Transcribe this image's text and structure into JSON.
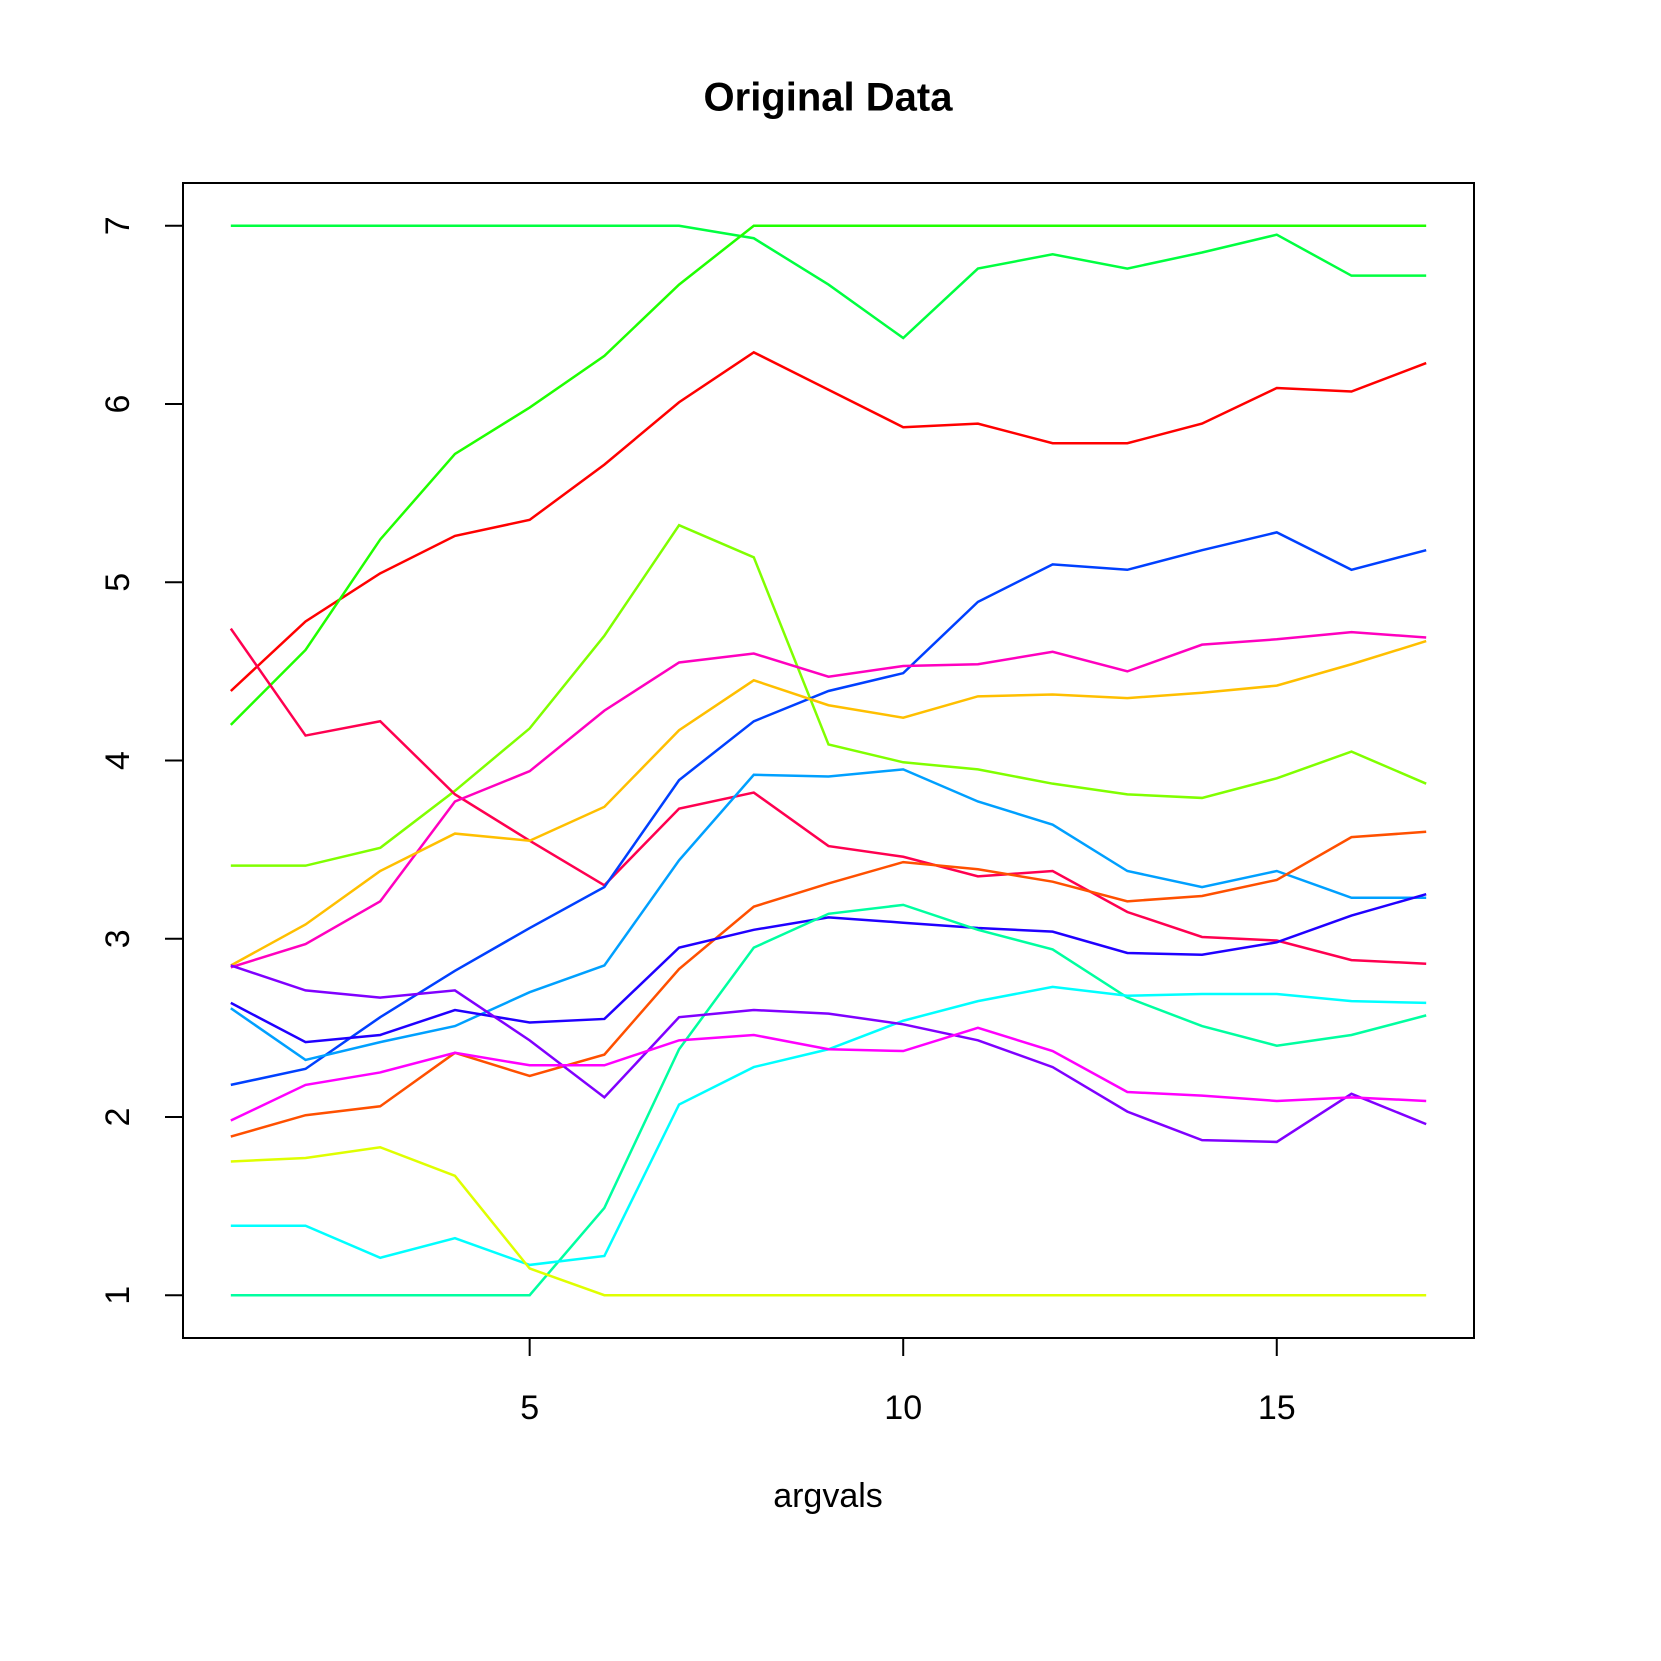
{
  "chart_data": {
    "type": "line",
    "title": "Original Data",
    "x_label": "argvals",
    "x": [
      1,
      2,
      3,
      4,
      5,
      6,
      7,
      8,
      9,
      10,
      11,
      12,
      13,
      14,
      15,
      16,
      17
    ],
    "xlim": [
      0.36,
      17.64
    ],
    "xticks": [
      5,
      10,
      15
    ],
    "ylim": [
      0.76,
      7.24
    ],
    "yticks": [
      1,
      2,
      3,
      4,
      5,
      6,
      7
    ],
    "series": [
      {
        "color": "#ff0000",
        "values": [
          4.39,
          4.78,
          5.05,
          5.26,
          5.35,
          5.66,
          6.01,
          6.29,
          6.08,
          5.87,
          5.89,
          5.78,
          5.78,
          5.89,
          6.09,
          6.07,
          6.23
        ]
      },
      {
        "color": "#00ff40",
        "values": [
          7,
          7,
          7,
          7,
          7,
          7,
          7,
          6.93,
          6.67,
          6.37,
          6.76,
          6.84,
          6.76,
          6.85,
          6.95,
          6.72,
          6.72
        ]
      },
      {
        "color": "#20ff00",
        "values": [
          4.2,
          4.62,
          5.24,
          5.72,
          5.98,
          6.27,
          6.67,
          7,
          7,
          7,
          7,
          7,
          7,
          7,
          7,
          7,
          7
        ]
      },
      {
        "color": "#80ff00",
        "values": [
          3.41,
          3.41,
          3.51,
          3.83,
          4.18,
          4.7,
          5.32,
          5.14,
          4.09,
          3.99,
          3.95,
          3.87,
          3.81,
          3.79,
          3.9,
          4.05,
          3.87
        ]
      },
      {
        "color": "#ff0050",
        "values": [
          4.74,
          4.14,
          4.22,
          3.81,
          3.55,
          3.3,
          3.73,
          3.82,
          3.52,
          3.46,
          3.35,
          3.38,
          3.15,
          3.01,
          2.99,
          2.88,
          2.86
        ]
      },
      {
        "color": "#0040ff",
        "values": [
          2.18,
          2.27,
          2.56,
          2.82,
          3.06,
          3.29,
          3.89,
          4.22,
          4.39,
          4.49,
          4.89,
          5.1,
          5.07,
          5.18,
          5.28,
          5.07,
          5.18
        ]
      },
      {
        "color": "#ff00bf",
        "values": [
          2.84,
          2.97,
          3.21,
          3.77,
          3.94,
          4.28,
          4.55,
          4.6,
          4.47,
          4.53,
          4.54,
          4.61,
          4.5,
          4.65,
          4.68,
          4.72,
          4.69
        ]
      },
      {
        "color": "#ffbf00",
        "values": [
          2.85,
          3.08,
          3.38,
          3.59,
          3.55,
          3.74,
          4.17,
          4.45,
          4.31,
          4.24,
          4.36,
          4.37,
          4.35,
          4.38,
          4.42,
          4.54,
          4.67
        ]
      },
      {
        "color": "#00a0ff",
        "values": [
          2.61,
          2.32,
          2.42,
          2.51,
          2.7,
          2.85,
          3.44,
          3.92,
          3.91,
          3.95,
          3.77,
          3.64,
          3.38,
          3.29,
          3.38,
          3.23,
          3.23
        ]
      },
      {
        "color": "#ff5000",
        "values": [
          1.89,
          2.01,
          2.06,
          2.36,
          2.23,
          2.35,
          2.83,
          3.18,
          3.31,
          3.43,
          3.39,
          3.32,
          3.21,
          3.24,
          3.33,
          3.57,
          3.6
        ]
      },
      {
        "color": "#2000ff",
        "values": [
          2.64,
          2.42,
          2.46,
          2.6,
          2.53,
          2.55,
          2.95,
          3.05,
          3.12,
          3.09,
          3.06,
          3.04,
          2.92,
          2.91,
          2.98,
          3.13,
          3.25
        ]
      },
      {
        "color": "#00ffa0",
        "values": [
          1,
          1,
          1,
          1,
          1,
          1.49,
          2.38,
          2.95,
          3.14,
          3.19,
          3.05,
          2.94,
          2.67,
          2.51,
          2.4,
          2.46,
          2.57
        ]
      },
      {
        "color": "#00ffff",
        "values": [
          1.39,
          1.39,
          1.21,
          1.32,
          1.17,
          1.22,
          2.07,
          2.28,
          2.38,
          2.54,
          2.65,
          2.73,
          2.68,
          2.69,
          2.69,
          2.65,
          2.64
        ]
      },
      {
        "color": "#8000ff",
        "values": [
          2.85,
          2.71,
          2.67,
          2.71,
          2.43,
          2.11,
          2.56,
          2.6,
          2.58,
          2.52,
          2.43,
          2.28,
          2.03,
          1.87,
          1.86,
          2.13,
          1.96
        ]
      },
      {
        "color": "#ff00ff",
        "values": [
          1.98,
          2.18,
          2.25,
          2.36,
          2.29,
          2.29,
          2.43,
          2.46,
          2.38,
          2.37,
          2.5,
          2.37,
          2.14,
          2.12,
          2.09,
          2.11,
          2.09
        ]
      },
      {
        "color": "#dfff00",
        "values": [
          1.75,
          1.77,
          1.83,
          1.67,
          1.15,
          1,
          1,
          1,
          1,
          1,
          1,
          1,
          1,
          1,
          1,
          1,
          1
        ]
      }
    ]
  }
}
